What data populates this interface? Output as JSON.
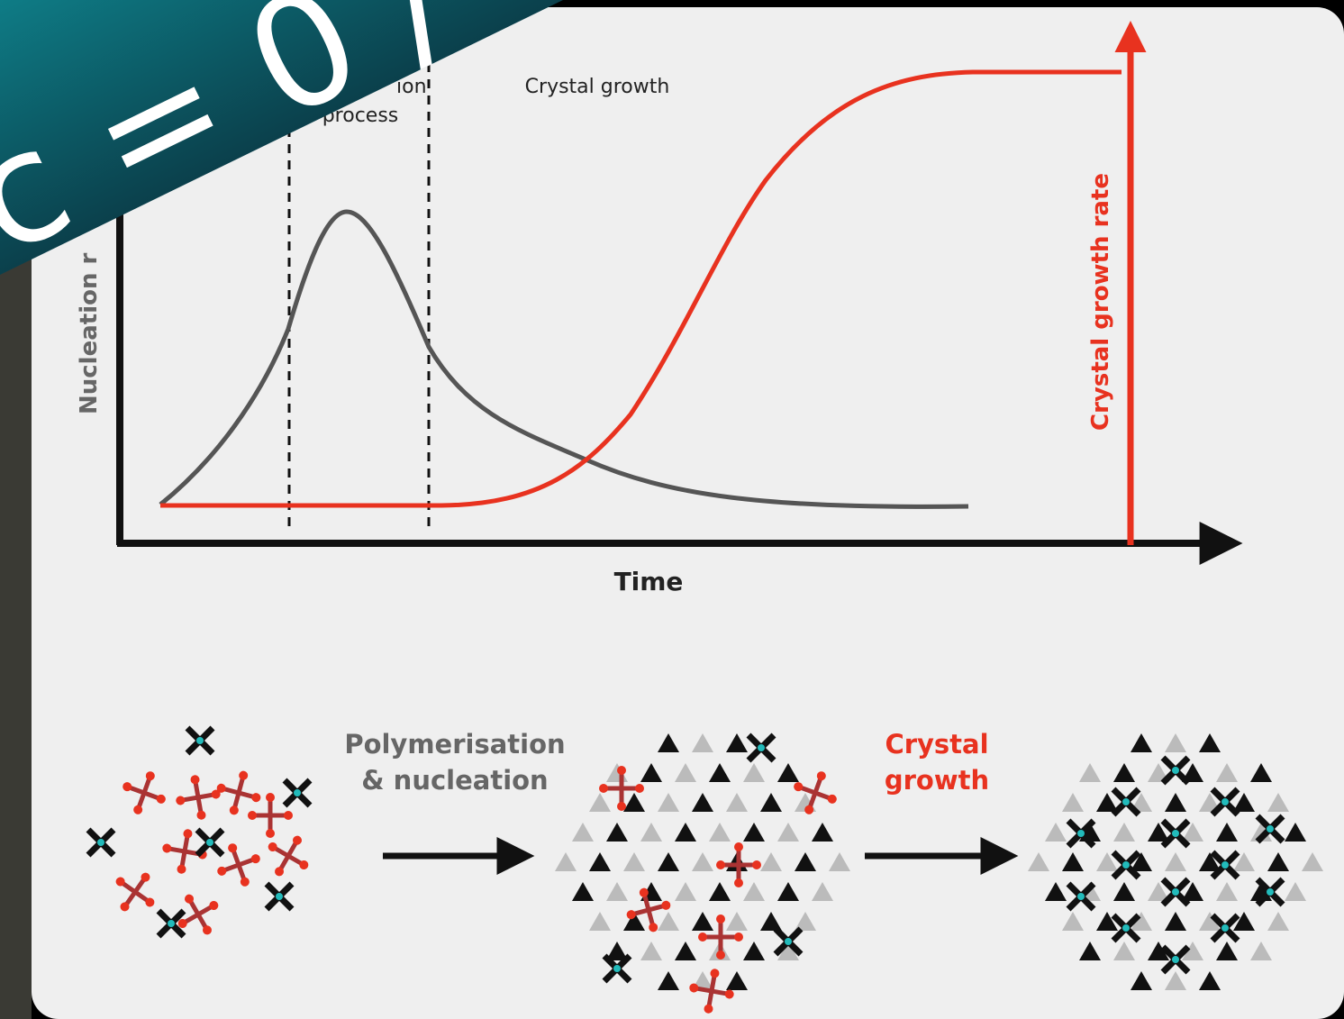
{
  "diagram": {
    "overlay_text": "c = 0 /",
    "phase_labels": {
      "nucleation_partial": "ion",
      "nucleation_second_line": "process",
      "growth": "Crystal growth"
    },
    "y_axis_label": "Nucleation r",
    "y2_axis_label": "Crystal growth rate",
    "x_axis_label": "Time",
    "steps": {
      "step1_line1": "Polymerisation",
      "step1_line2": "& nucleation",
      "step2_line1": "Crystal",
      "step2_line2": "growth"
    }
  }
}
